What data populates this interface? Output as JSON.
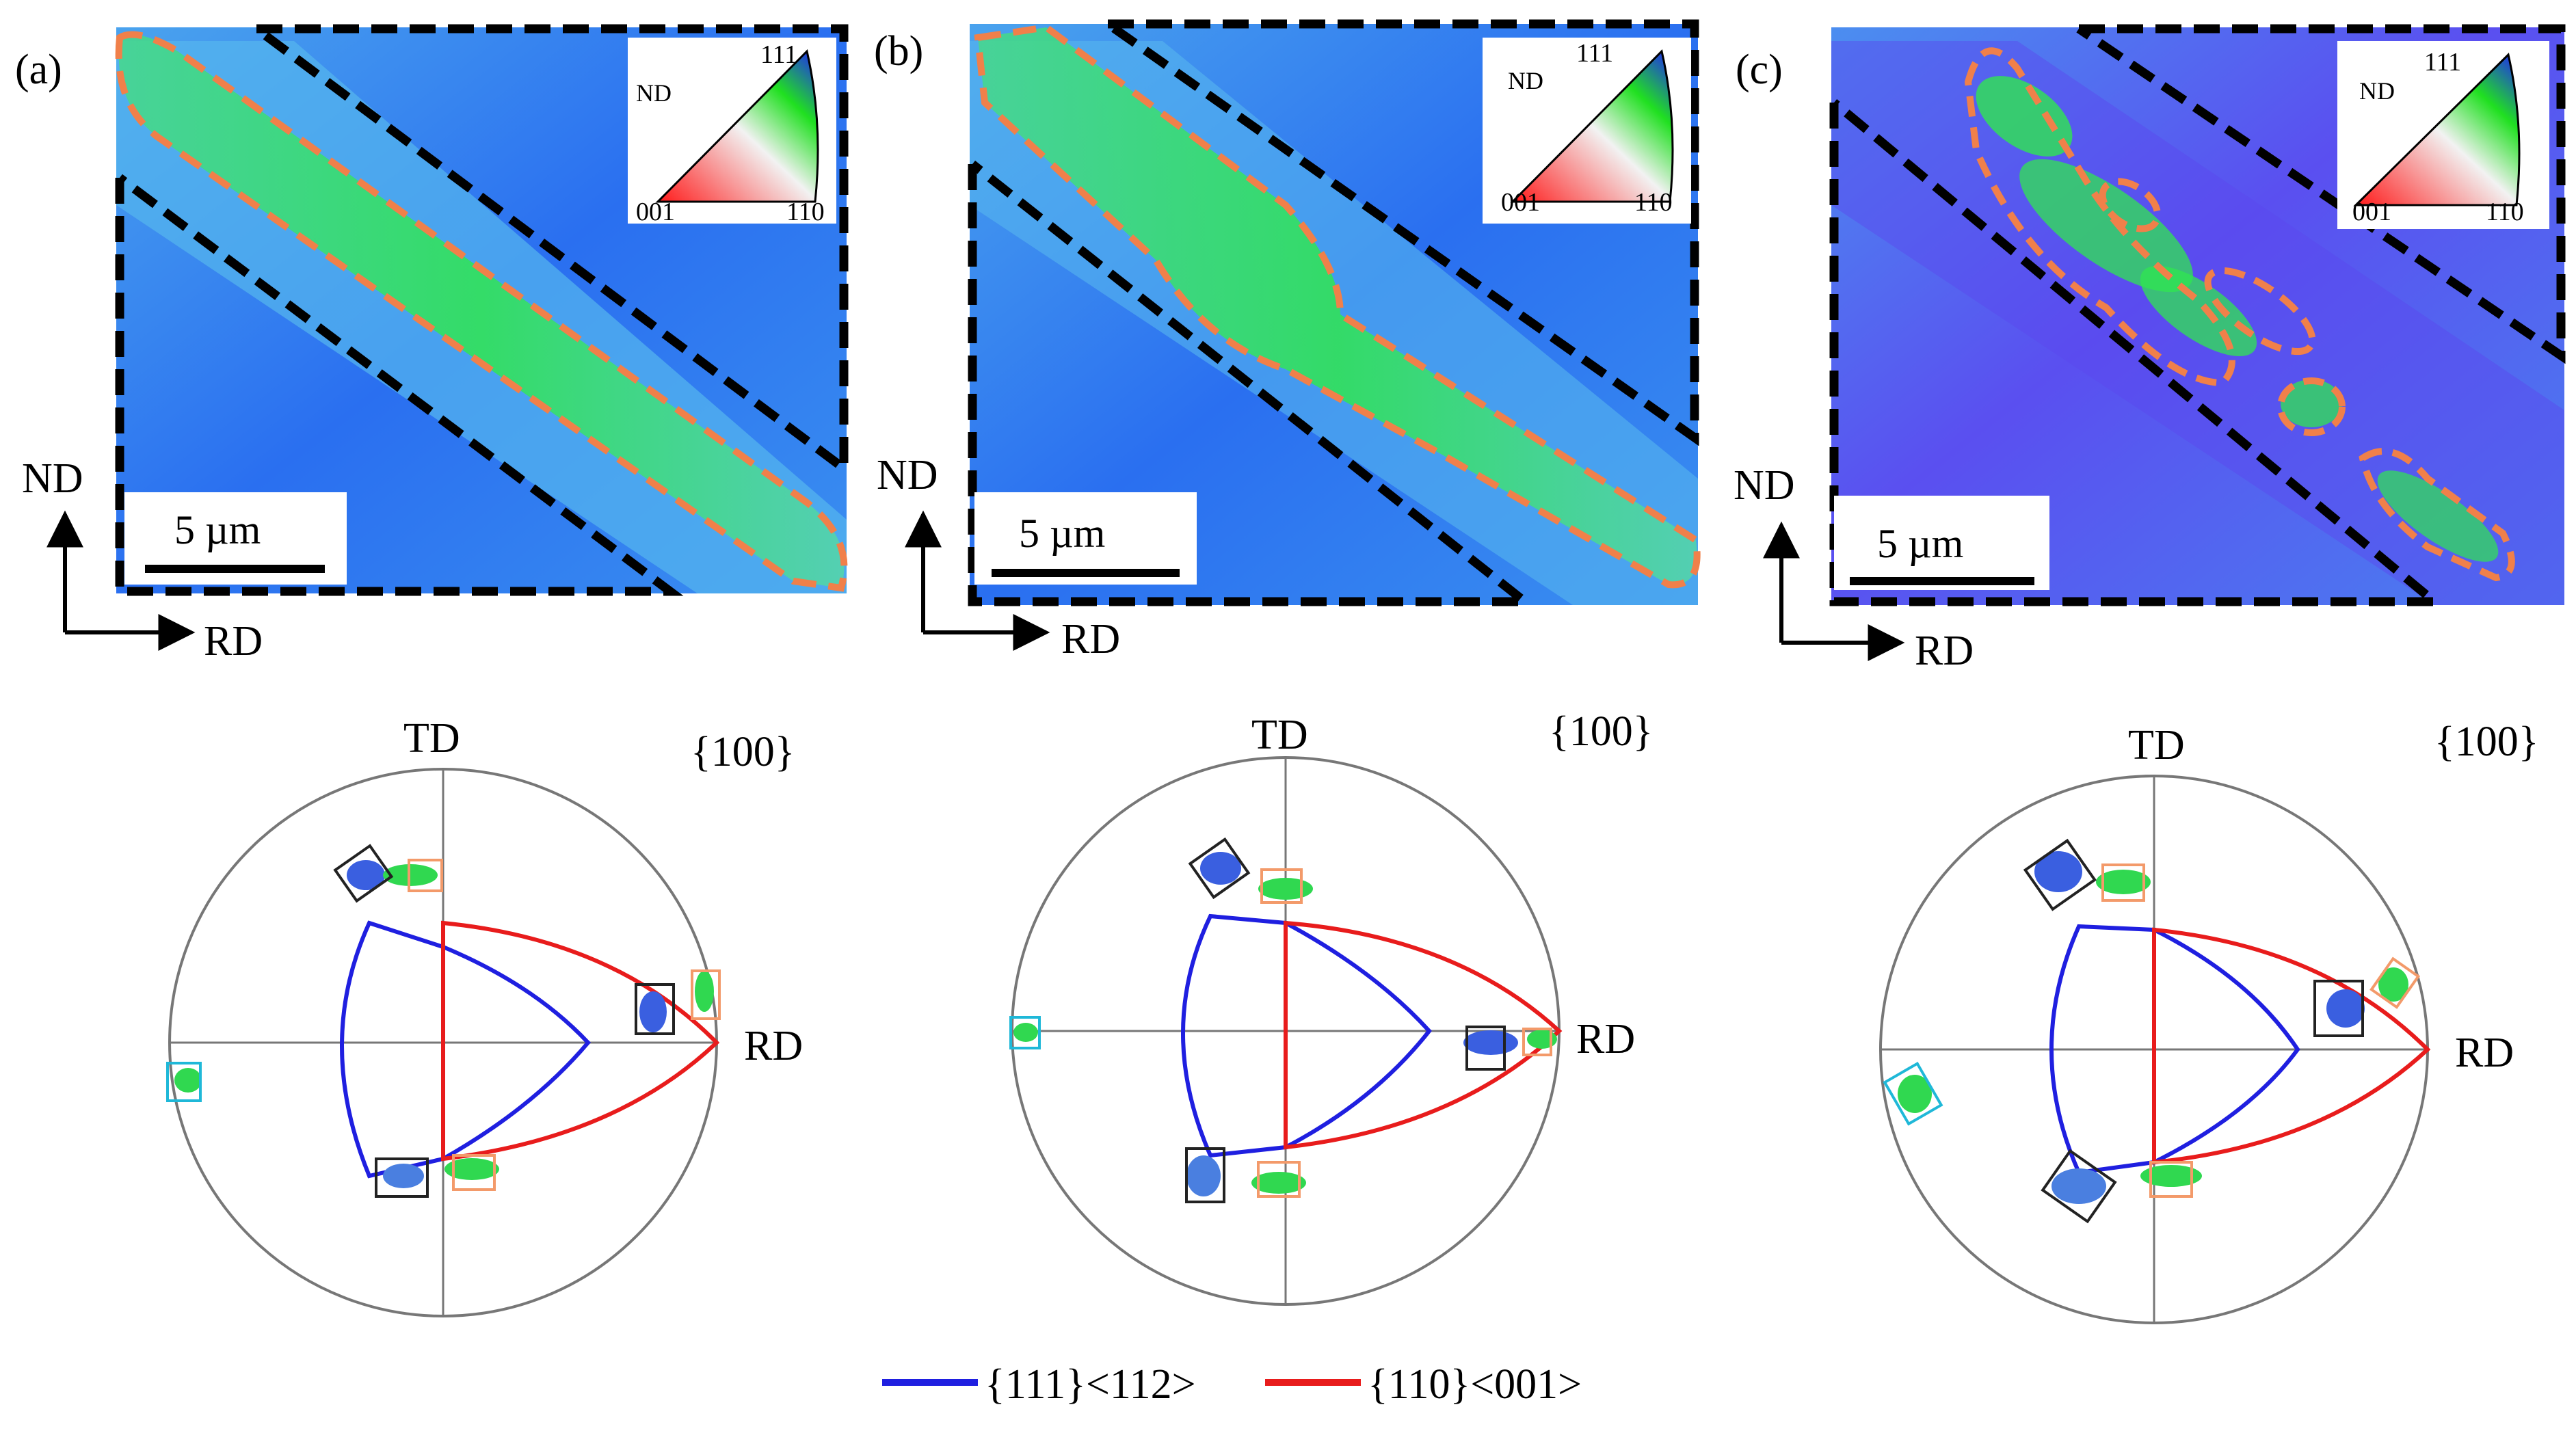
{
  "panels": [
    {
      "id": "a",
      "label": "(a)",
      "scale_text": "5 µm",
      "nd_label": "ND",
      "rd_label": "RD"
    },
    {
      "id": "b",
      "label": "(b)",
      "scale_text": "5 µm",
      "nd_label": "ND",
      "rd_label": "RD"
    },
    {
      "id": "c",
      "label": "(c)",
      "scale_text": "5 µm",
      "nd_label": "ND",
      "rd_label": "RD"
    }
  ],
  "ipf_key": {
    "nd": "ND",
    "v111": "111",
    "v001": "001",
    "v110": "110"
  },
  "pole_figure": {
    "title": "{100}",
    "td": "TD",
    "rd": "RD"
  },
  "legend": {
    "items": [
      {
        "label": "{111}<112>",
        "color": "#1f1fe0"
      },
      {
        "label": "{110}<001>",
        "color": "#e81c1c"
      }
    ]
  },
  "colors": {
    "map_blue": "#2a5ff0",
    "map_cyan": "#3fb6ee",
    "map_green": "#2ee848",
    "map_purple": "#6b3ff2",
    "dash_orange": "#f0804a",
    "dash_black": "#000000",
    "box_black": "#222222",
    "box_orange": "#f39a6a",
    "box_cyan": "#1fb8d8",
    "pf_circle": "#777777"
  }
}
